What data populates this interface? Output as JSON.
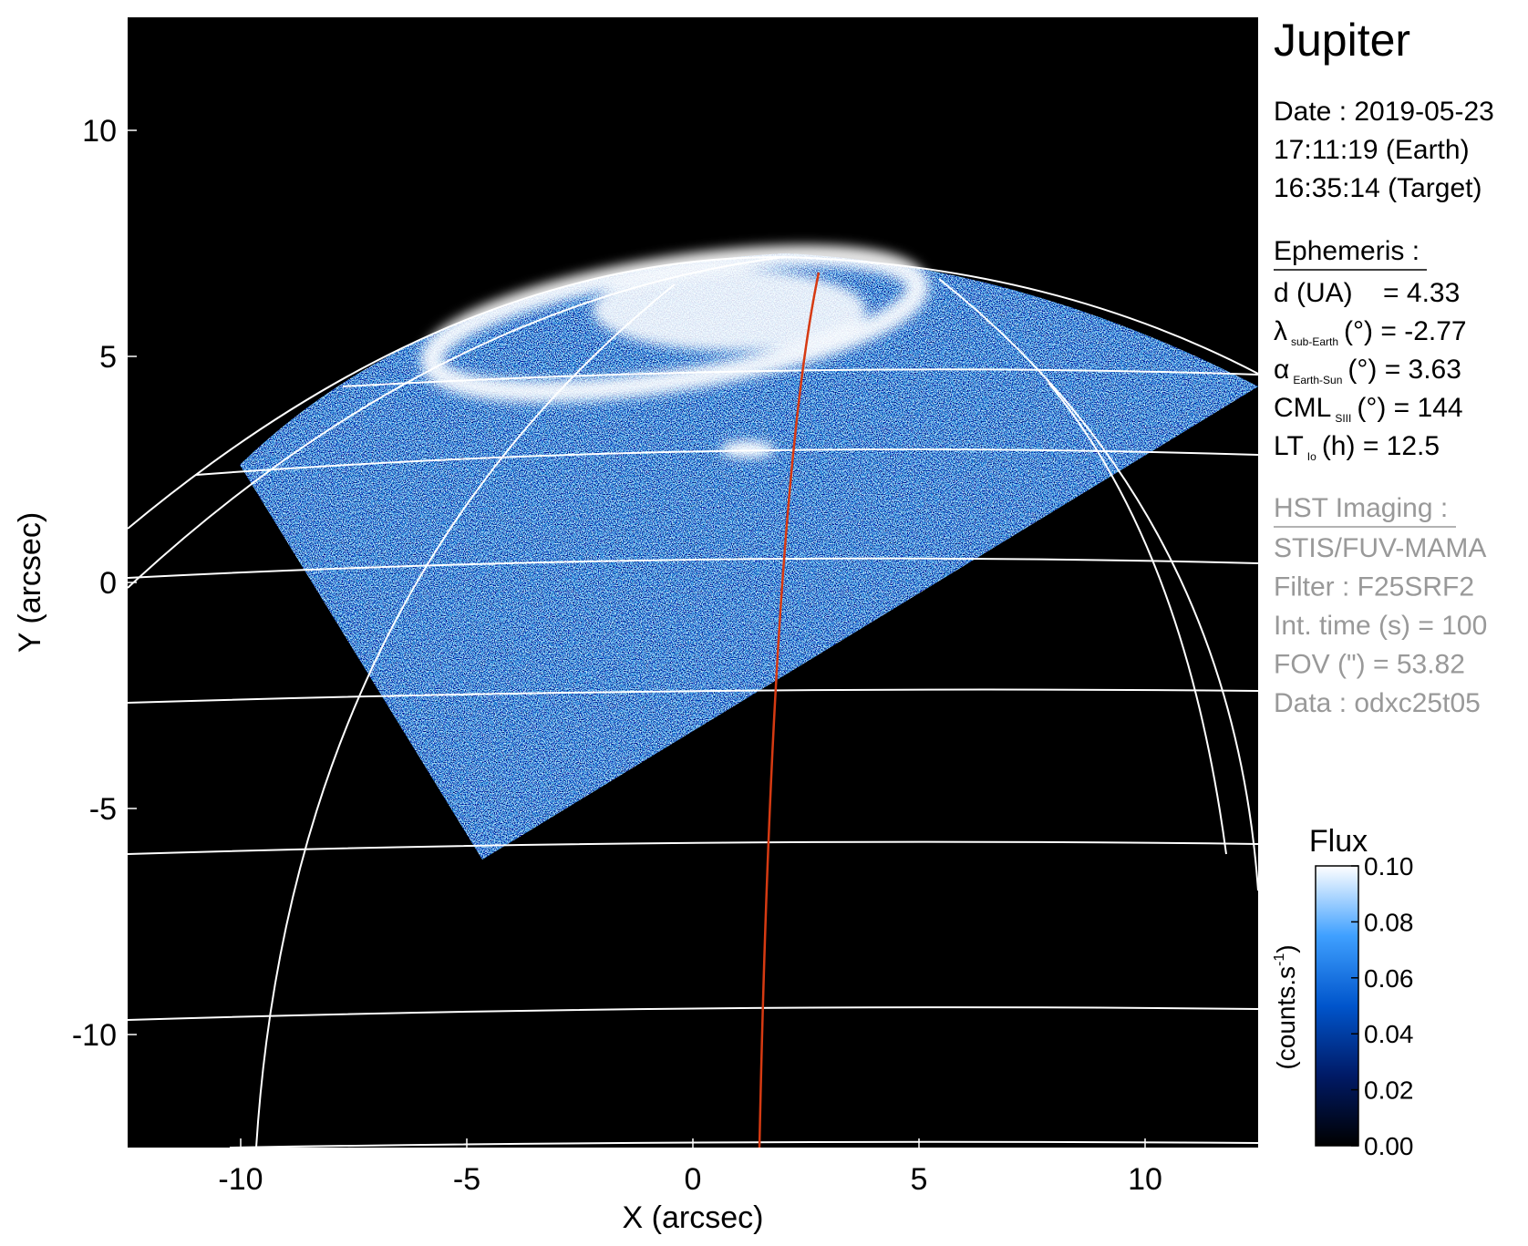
{
  "chart_data": {
    "type": "image",
    "xlabel": "X (arcsec)",
    "ylabel": "Y (arcsec)",
    "xlim": [
      -12.5,
      12.5
    ],
    "ylim": [
      -12.5,
      12.5
    ],
    "xticks": [
      -10,
      -5,
      0,
      5,
      10
    ],
    "yticks": [
      -10,
      -5,
      0,
      5,
      10
    ],
    "colorbar": {
      "title": "Flux",
      "label": "(counts.s",
      "label_sup": "-1",
      "label_end": ")",
      "lim": [
        0,
        0.1
      ],
      "ticks": [
        {
          "value": 0,
          "label": "0.00"
        },
        {
          "value": 0.02,
          "label": "0.02"
        },
        {
          "value": 0.04,
          "label": "0.04"
        },
        {
          "value": 0.06,
          "label": "0.06"
        },
        {
          "value": 0.08,
          "label": "0.08"
        },
        {
          "value": 0.1,
          "label": "0.10"
        }
      ],
      "colors": [
        "#000000",
        "#001a66",
        "#0055cc",
        "#3fa0ff",
        "#ffffff"
      ]
    }
  },
  "info": {
    "title": "Jupiter",
    "date": [
      "Date : 2019-05-23",
      "17:11:19 (Earth)",
      "16:35:14 (Target)"
    ],
    "ephemeris": {
      "heading": "Ephemeris :",
      "lines": [
        {
          "symbol": "d (UA)",
          "sub": "",
          "rest": "    = 4.33"
        },
        {
          "symbol": "λ",
          "sub": "sub-Earth",
          "rest": "(°) = -2.77"
        },
        {
          "symbol": "α",
          "sub": "Earth-Sun",
          "rest": "(°) = 3.63"
        },
        {
          "symbol": "CML",
          "sub": "SIII",
          "rest": "(°) = 144"
        },
        {
          "symbol": "LT",
          "sub": "Io",
          "rest": "(h) = 12.5"
        }
      ]
    },
    "hst": {
      "heading": "HST Imaging :",
      "lines": [
        "STIS/FUV-MAMA",
        "Filter : F25SRF2",
        "Int. time (s) = 100",
        "FOV (\") = 53.82",
        "Data : odxc25t05"
      ]
    }
  }
}
